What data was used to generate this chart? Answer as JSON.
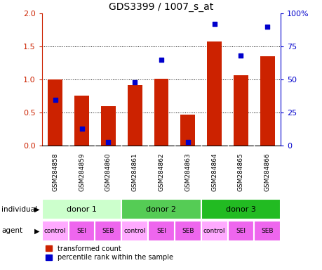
{
  "title": "GDS3399 / 1007_s_at",
  "samples": [
    "GSM284858",
    "GSM284859",
    "GSM284860",
    "GSM284861",
    "GSM284862",
    "GSM284863",
    "GSM284864",
    "GSM284865",
    "GSM284866"
  ],
  "transformed_count": [
    1.0,
    0.76,
    0.6,
    0.92,
    1.01,
    0.47,
    1.58,
    1.07,
    1.35
  ],
  "percentile_rank": [
    35,
    13,
    3,
    48,
    65,
    3,
    92,
    68,
    90
  ],
  "ylim_left": [
    0,
    2
  ],
  "ylim_right": [
    0,
    100
  ],
  "yticks_left": [
    0,
    0.5,
    1.0,
    1.5,
    2.0
  ],
  "yticks_right": [
    0,
    25,
    50,
    75,
    100
  ],
  "bar_color": "#cc2200",
  "dot_color": "#0000cc",
  "bar_width": 0.55,
  "individual_labels": [
    "donor 1",
    "donor 2",
    "donor 3"
  ],
  "individual_colors": [
    "#ccffcc",
    "#55cc55",
    "#22bb22"
  ],
  "agent_labels": [
    "control",
    "SEI",
    "SEB",
    "control",
    "SEI",
    "SEB",
    "control",
    "SEI",
    "SEB"
  ],
  "agent_colors_list": [
    "#ffaaff",
    "#ee66ee",
    "#ee66ee",
    "#ffaaff",
    "#ee66ee",
    "#ee66ee",
    "#ffaaff",
    "#ee66ee",
    "#ee66ee"
  ],
  "gsm_bg_color": "#cccccc",
  "axis_color_left": "#cc2200",
  "axis_color_right": "#0000cc",
  "title_fontsize": 10,
  "bar_label_fontsize": 7,
  "annotation_fontsize": 8,
  "agent_fontsize": 6.5
}
